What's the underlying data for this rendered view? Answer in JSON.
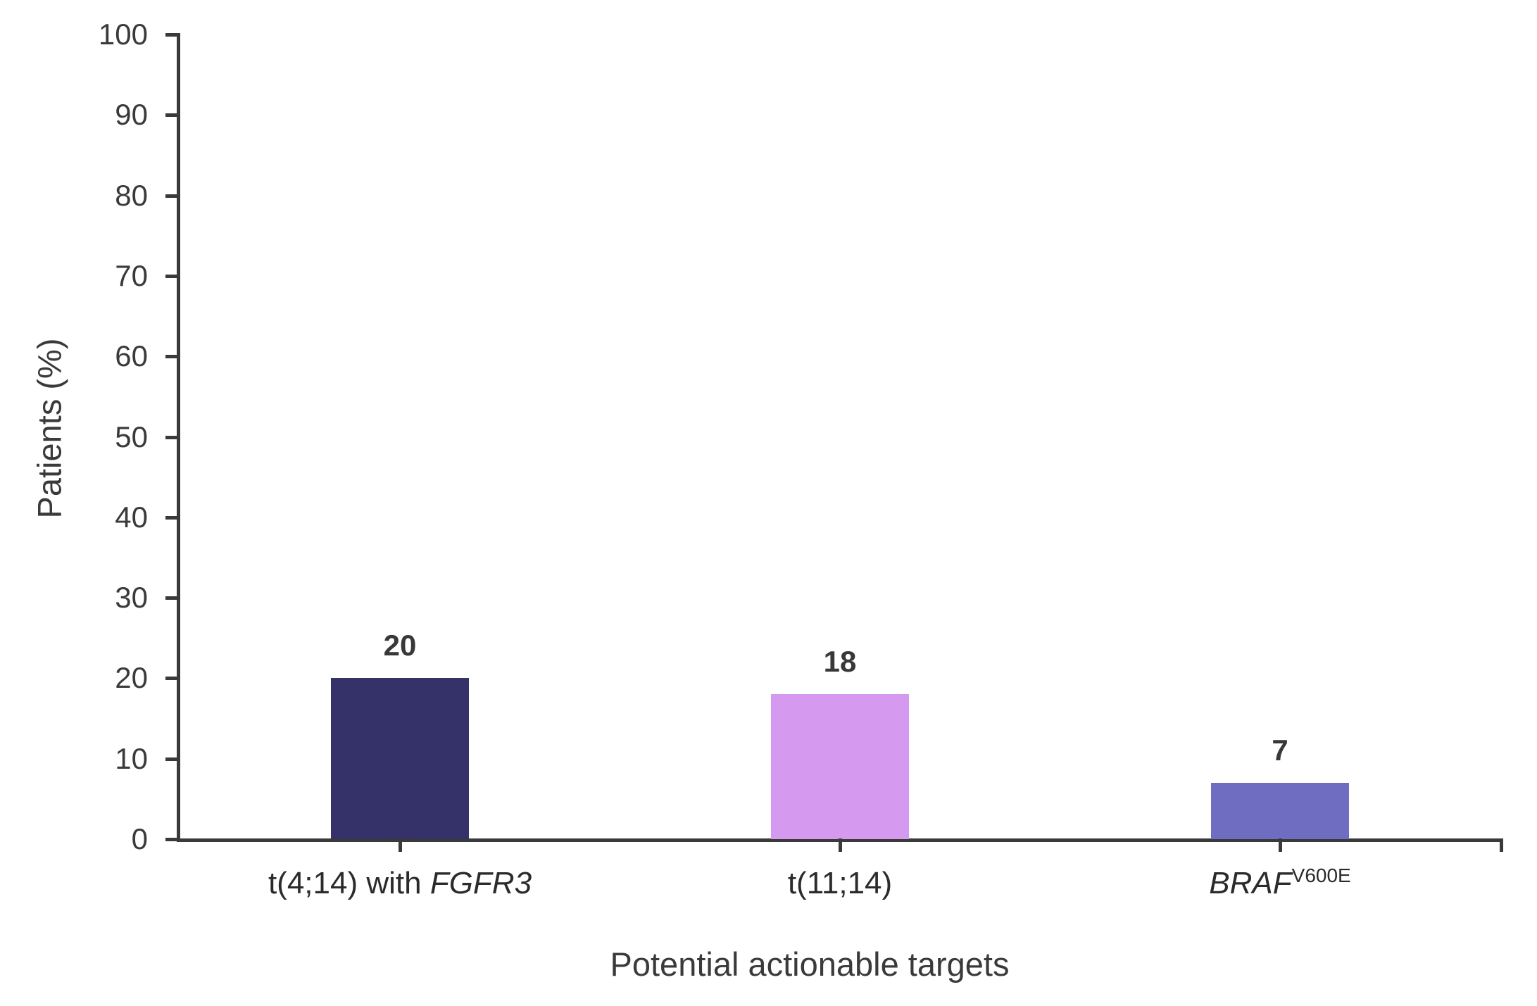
{
  "chart_data": {
    "type": "bar",
    "title": "",
    "xlabel": "Potential actionable targets",
    "ylabel": "Patients (%)",
    "categories": [
      "t(4;14) with FGFR3",
      "t(11;14)",
      "BRAF V600E"
    ],
    "values": [
      20,
      18,
      7
    ],
    "data_labels": [
      "20",
      "18",
      "7"
    ],
    "bar_colors": [
      "#353269",
      "#D59AEF",
      "#6F6DC2"
    ],
    "ylim": [
      0,
      100
    ],
    "yticks": [
      0,
      10,
      20,
      30,
      40,
      50,
      60,
      70,
      80,
      90,
      100
    ],
    "grid": false,
    "legend": false
  },
  "category_labels": [
    {
      "prefix": "t(4;14) with ",
      "italic": "FGFR3",
      "superscript": ""
    },
    {
      "prefix": "t(11;14)",
      "italic": "",
      "superscript": ""
    },
    {
      "prefix": "",
      "italic": "BRAF",
      "superscript": "V600E"
    }
  ],
  "colors": {
    "axis": "#3a3a3a",
    "tick_text": "#3a3a3a",
    "category_text": "#2b2b2b",
    "value_text": "#383838",
    "background": "#ffffff"
  }
}
